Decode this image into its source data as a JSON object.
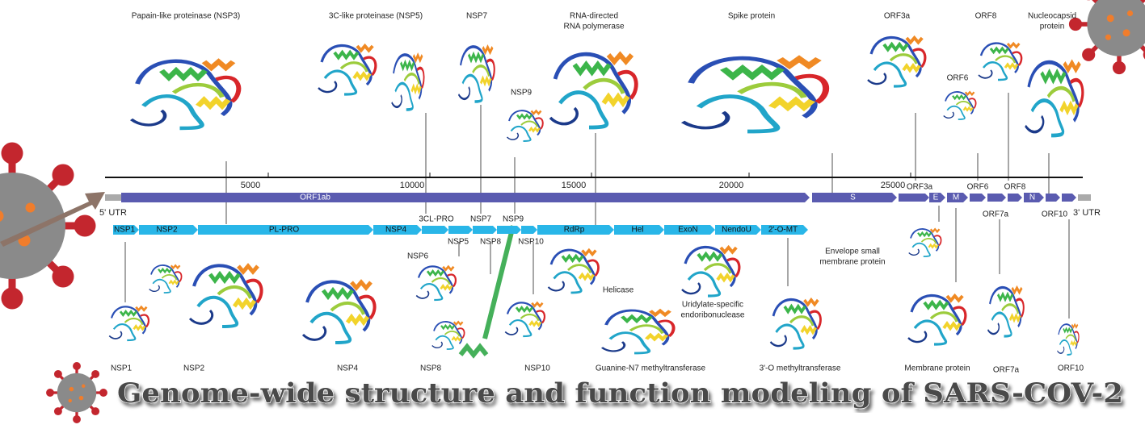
{
  "title": "Genome-wide structure and function modeling of SARS-COV-2",
  "axis_ticks": [
    5000,
    10000,
    15000,
    20000,
    25000
  ],
  "utr": [
    "5' UTR",
    "3' UTR"
  ],
  "genes": [
    "ORF1ab",
    "S",
    "E",
    "M",
    "N"
  ],
  "gene_marks": [
    "3CL-PRO",
    "NSP7",
    "NSP9",
    "ORF3a",
    "ORF6",
    "ORF8",
    "ORF7a",
    "ORF10"
  ],
  "domains": [
    "NSP1",
    "NSP2",
    "PL-PRO",
    "NSP4",
    "RdRp",
    "Hel",
    "ExoN",
    "NendoU",
    "2'-O-MT"
  ],
  "domain_marks": [
    "NSP5",
    "NSP8",
    "NSP10",
    "NSP6"
  ],
  "top_structures": [
    [
      "Papain-like proteinase (NSP3)"
    ],
    [
      "3C-like proteinase (NSP5)"
    ],
    [
      "NSP7"
    ],
    [
      "RNA-directed",
      "RNA polymerase"
    ],
    [
      "Spike protein"
    ],
    [
      "ORF3a"
    ],
    [
      "ORF8"
    ],
    [
      "Nucleocapsid",
      "protein"
    ],
    [
      "ORF6"
    ],
    [
      "NSP9"
    ]
  ],
  "bottom_structures": [
    [
      "NSP1"
    ],
    [
      "NSP2"
    ],
    [
      "NSP4"
    ],
    [
      "NSP8"
    ],
    [
      "NSP10"
    ],
    [
      "Guanine-N7 methyltransferase"
    ],
    [
      "3'-O methyltransferase"
    ],
    [
      "Membrane protein"
    ],
    [
      "ORF7a"
    ],
    [
      "ORF10"
    ],
    [
      "Helicase"
    ],
    [
      "Envelope small",
      "membrane protein"
    ],
    [
      "Uridylate-specific",
      "endoribonuclease"
    ]
  ]
}
